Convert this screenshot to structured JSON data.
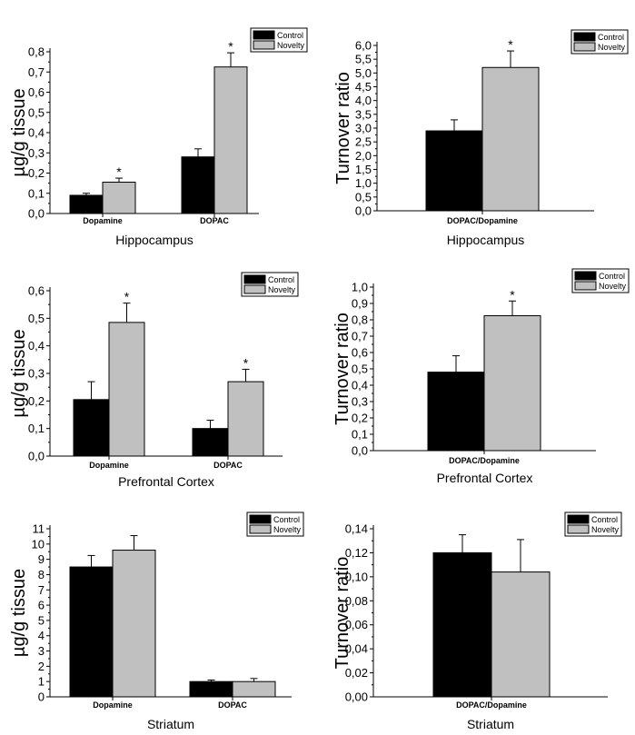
{
  "legend": {
    "control": "Control",
    "novelty": "Novelty"
  },
  "colors": {
    "control": "#000000",
    "novelty": "#c0c0c0",
    "axis": "#000000"
  },
  "significance_marker": "*",
  "chart_data": [
    {
      "id": "hip-conc",
      "type": "bar",
      "xlabel": "Hippocampus",
      "ylabel": "µg/g tissue",
      "ylim": [
        0,
        0.8
      ],
      "yticks": [
        "0,0",
        "0,1",
        "0,2",
        "0,3",
        "0,4",
        "0,5",
        "0,6",
        "0,7",
        "0,8"
      ],
      "categories": [
        "Dopamine",
        "DOPAC"
      ],
      "series": [
        {
          "name": "Control",
          "values": [
            0.09,
            0.28
          ],
          "errors": [
            0.01,
            0.04
          ],
          "significant": [
            false,
            false
          ]
        },
        {
          "name": "Novelty",
          "values": [
            0.155,
            0.725
          ],
          "errors": [
            0.02,
            0.07
          ],
          "significant": [
            true,
            true
          ]
        }
      ]
    },
    {
      "id": "hip-turn",
      "type": "bar",
      "xlabel": "Hippocampus",
      "ylabel": "Turnover ratio",
      "ylim": [
        0,
        6.0
      ],
      "yticks": [
        "0,0",
        "0,5",
        "1,0",
        "1,5",
        "2,0",
        "2,5",
        "3,0",
        "3,5",
        "4,0",
        "4,5",
        "5,0",
        "5,5",
        "6,0"
      ],
      "categories": [
        "DOPAC/Dopamine"
      ],
      "series": [
        {
          "name": "Control",
          "values": [
            2.9
          ],
          "errors": [
            0.4
          ],
          "significant": [
            false
          ]
        },
        {
          "name": "Novelty",
          "values": [
            5.2
          ],
          "errors": [
            0.6
          ],
          "significant": [
            true
          ]
        }
      ]
    },
    {
      "id": "pfc-conc",
      "type": "bar",
      "xlabel": "Prefrontal Cortex",
      "ylabel": "µg/g tissue",
      "ylim": [
        0,
        0.6
      ],
      "yticks": [
        "0,0",
        "0,1",
        "0,2",
        "0,3",
        "0,4",
        "0,5",
        "0,6"
      ],
      "categories": [
        "Dopamine",
        "DOPAC"
      ],
      "series": [
        {
          "name": "Control",
          "values": [
            0.205,
            0.1
          ],
          "errors": [
            0.065,
            0.03
          ],
          "significant": [
            false,
            false
          ]
        },
        {
          "name": "Novelty",
          "values": [
            0.485,
            0.27
          ],
          "errors": [
            0.07,
            0.045
          ],
          "significant": [
            true,
            true
          ]
        }
      ]
    },
    {
      "id": "pfc-turn",
      "type": "bar",
      "xlabel": "Prefrontal Cortex",
      "ylabel": "Turnover ratio",
      "ylim": [
        0,
        1.0
      ],
      "yticks": [
        "0,0",
        "0,1",
        "0,2",
        "0,3",
        "0,4",
        "0,5",
        "0,6",
        "0,7",
        "0,8",
        "0,9",
        "1,0"
      ],
      "categories": [
        "DOPAC/Dopamine"
      ],
      "series": [
        {
          "name": "Control",
          "values": [
            0.48
          ],
          "errors": [
            0.1
          ],
          "significant": [
            false
          ]
        },
        {
          "name": "Novelty",
          "values": [
            0.825
          ],
          "errors": [
            0.09
          ],
          "significant": [
            true
          ]
        }
      ]
    },
    {
      "id": "str-conc",
      "type": "bar",
      "xlabel": "Striatum",
      "ylabel": "µg/g tissue",
      "ylim": [
        0,
        11
      ],
      "yticks": [
        "0",
        "1",
        "2",
        "3",
        "4",
        "5",
        "6",
        "7",
        "8",
        "9",
        "10",
        "11"
      ],
      "categories": [
        "Dopamine",
        "DOPAC"
      ],
      "series": [
        {
          "name": "Control",
          "values": [
            8.5,
            1.0
          ],
          "errors": [
            0.75,
            0.1
          ],
          "significant": [
            false,
            false
          ]
        },
        {
          "name": "Novelty",
          "values": [
            9.6,
            1.0
          ],
          "errors": [
            0.95,
            0.2
          ],
          "significant": [
            false,
            false
          ]
        }
      ]
    },
    {
      "id": "str-turn",
      "type": "bar",
      "xlabel": "Striatum",
      "ylabel": "Turnover ratio",
      "ylim": [
        0,
        0.14
      ],
      "yticks": [
        "0,00",
        "0,02",
        "0,04",
        "0,06",
        "0,08",
        "0,10",
        "0,12",
        "0,14"
      ],
      "categories": [
        "DOPAC/Dopamine"
      ],
      "series": [
        {
          "name": "Control",
          "values": [
            0.12
          ],
          "errors": [
            0.015
          ],
          "significant": [
            false
          ]
        },
        {
          "name": "Novelty",
          "values": [
            0.104
          ],
          "errors": [
            0.027
          ],
          "significant": [
            false
          ]
        }
      ]
    }
  ]
}
